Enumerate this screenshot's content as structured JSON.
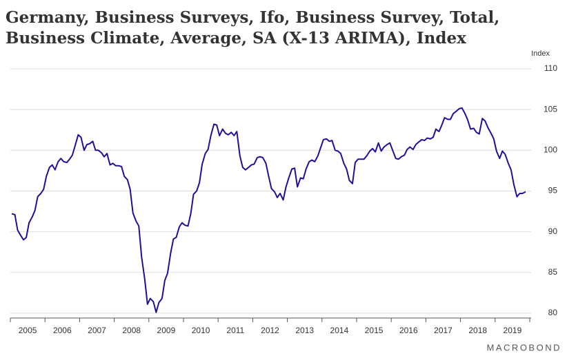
{
  "chart_data": {
    "type": "line",
    "title": [
      "Germany, Business Surveys, Ifo, Business Survey, Total,",
      "Business Climate, Average, SA (X-13 ARIMA), Index"
    ],
    "y_axis_label": "Index",
    "source": "MACROBOND",
    "x": [
      2005.04,
      2005.13,
      2005.21,
      2005.29,
      2005.38,
      2005.46,
      2005.54,
      2005.63,
      2005.71,
      2005.79,
      2005.88,
      2005.96,
      2006.04,
      2006.13,
      2006.21,
      2006.29,
      2006.38,
      2006.46,
      2006.54,
      2006.63,
      2006.71,
      2006.79,
      2006.88,
      2006.96,
      2007.04,
      2007.13,
      2007.21,
      2007.29,
      2007.38,
      2007.46,
      2007.54,
      2007.63,
      2007.71,
      2007.79,
      2007.88,
      2007.96,
      2008.04,
      2008.13,
      2008.21,
      2008.29,
      2008.38,
      2008.46,
      2008.54,
      2008.63,
      2008.71,
      2008.79,
      2008.88,
      2008.96,
      2009.04,
      2009.13,
      2009.21,
      2009.29,
      2009.38,
      2009.46,
      2009.54,
      2009.63,
      2009.71,
      2009.79,
      2009.88,
      2009.96,
      2010.04,
      2010.13,
      2010.21,
      2010.29,
      2010.38,
      2010.46,
      2010.54,
      2010.63,
      2010.71,
      2010.79,
      2010.88,
      2010.96,
      2011.04,
      2011.13,
      2011.21,
      2011.29,
      2011.38,
      2011.46,
      2011.54,
      2011.63,
      2011.71,
      2011.79,
      2011.88,
      2011.96,
      2012.04,
      2012.13,
      2012.21,
      2012.29,
      2012.38,
      2012.46,
      2012.54,
      2012.63,
      2012.71,
      2012.79,
      2012.88,
      2012.96,
      2013.04,
      2013.13,
      2013.21,
      2013.29,
      2013.38,
      2013.46,
      2013.54,
      2013.63,
      2013.71,
      2013.79,
      2013.88,
      2013.96,
      2014.04,
      2014.13,
      2014.21,
      2014.29,
      2014.38,
      2014.46,
      2014.54,
      2014.63,
      2014.71,
      2014.79,
      2014.88,
      2014.96,
      2015.04,
      2015.13,
      2015.21,
      2015.29,
      2015.38,
      2015.46,
      2015.54,
      2015.63,
      2015.71,
      2015.79,
      2015.88,
      2015.96,
      2016.04,
      2016.13,
      2016.21,
      2016.29,
      2016.38,
      2016.46,
      2016.54,
      2016.63,
      2016.71,
      2016.79,
      2016.88,
      2016.96,
      2017.04,
      2017.13,
      2017.21,
      2017.29,
      2017.38,
      2017.46,
      2017.54,
      2017.63,
      2017.71,
      2017.79,
      2017.88,
      2017.96,
      2018.04,
      2018.13,
      2018.21,
      2018.29,
      2018.38,
      2018.46,
      2018.54,
      2018.63,
      2018.71,
      2018.79,
      2018.88,
      2018.96,
      2019.04,
      2019.13,
      2019.21,
      2019.29,
      2019.38,
      2019.46,
      2019.54,
      2019.63,
      2019.71,
      2019.79,
      2019.88
    ],
    "series": [
      {
        "color": "#1f0f96",
        "values": [
          92.2,
          92.1,
          90.2,
          89.6,
          89.0,
          89.3,
          91.1,
          91.8,
          92.6,
          94.3,
          94.7,
          95.2,
          96.8,
          97.9,
          98.2,
          97.6,
          98.6,
          99.0,
          98.6,
          98.5,
          98.9,
          99.4,
          100.7,
          101.9,
          101.6,
          100.0,
          100.7,
          100.8,
          101.1,
          100.0,
          100.0,
          99.7,
          99.2,
          99.6,
          98.2,
          98.4,
          98.1,
          98.1,
          98.0,
          96.8,
          96.4,
          95.2,
          92.3,
          91.3,
          90.7,
          86.9,
          84.2,
          81.1,
          81.8,
          81.4,
          80.1,
          81.3,
          81.8,
          84.0,
          84.9,
          87.4,
          89.1,
          89.3,
          90.6,
          91.1,
          90.8,
          90.7,
          92.2,
          94.6,
          95.0,
          96.0,
          98.3,
          99.6,
          100.1,
          101.8,
          103.2,
          103.1,
          101.8,
          102.6,
          102.1,
          101.9,
          102.2,
          101.8,
          102.3,
          99.3,
          97.9,
          97.6,
          97.9,
          98.2,
          98.3,
          99.1,
          99.2,
          99.1,
          98.4,
          96.8,
          95.3,
          94.9,
          94.2,
          94.7,
          93.9,
          95.5,
          96.6,
          97.7,
          97.8,
          95.5,
          96.6,
          96.5,
          97.7,
          98.6,
          98.8,
          98.6,
          99.3,
          100.3,
          101.3,
          101.4,
          101.1,
          101.2,
          100.0,
          99.9,
          99.6,
          98.4,
          97.7,
          96.3,
          95.9,
          98.5,
          98.9,
          98.9,
          98.9,
          99.3,
          99.9,
          100.2,
          99.8,
          100.9,
          99.9,
          100.4,
          100.7,
          100.9,
          100.0,
          99.0,
          98.9,
          99.2,
          99.4,
          100.1,
          100.4,
          100.1,
          100.7,
          101.0,
          101.3,
          101.2,
          101.5,
          101.4,
          101.6,
          102.6,
          102.3,
          103.1,
          104.0,
          103.8,
          103.8,
          104.5,
          104.8,
          105.1,
          105.2,
          104.5,
          103.7,
          102.6,
          102.7,
          102.2,
          102.0,
          103.9,
          103.6,
          102.8,
          102.1,
          101.4,
          99.9,
          99.0,
          99.9,
          99.5,
          98.4,
          97.6,
          95.8,
          94.3,
          94.7,
          94.7,
          94.9
        ]
      }
    ],
    "xlim": [
      2005,
      2020
    ],
    "xticks": [
      2005,
      2006,
      2007,
      2008,
      2009,
      2010,
      2011,
      2012,
      2013,
      2014,
      2015,
      2016,
      2017,
      2018,
      2019
    ],
    "ylim": [
      79.4,
      110
    ],
    "yticks": [
      80,
      85,
      90,
      95,
      100,
      105,
      110
    ],
    "grid": true
  }
}
